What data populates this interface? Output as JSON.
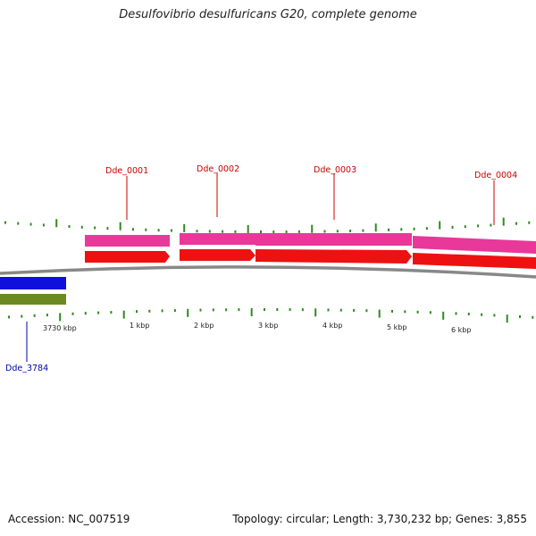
{
  "title": "Desulfovibrio desulfuricans G20, complete genome",
  "footer": {
    "accession": "Accession: NC_007519",
    "summary": "Topology: circular; Length: 3,730,232 bp; Genes: 3,855"
  },
  "genes": {
    "dde_0001": "Dde_0001",
    "dde_0002": "Dde_0002",
    "dde_0003": "Dde_0003",
    "dde_0004": "Dde_0004",
    "dde_3784": "Dde_3784"
  },
  "scale": {
    "t3730": "3730 kbp",
    "t1": "1 kbp",
    "t2": "2 kbp",
    "t3": "3 kbp",
    "t4": "4 kbp",
    "t5": "5 kbp",
    "t6": "6 kbp"
  },
  "colors": {
    "forward_cds": "#e8389a",
    "forward_gene": "#ee1111",
    "reverse_gene": "#1010dd",
    "reverse_cds": "#6b8a22",
    "tick": "#2f8a1e",
    "forward_label": "#cc0000",
    "reverse_label": "#0000aa",
    "backbone": "#888888"
  }
}
